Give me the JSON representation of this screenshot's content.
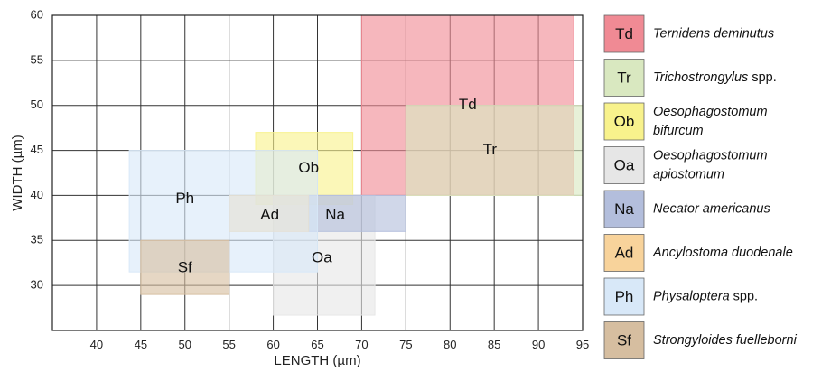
{
  "chart_data": {
    "type": "range-box",
    "xlabel": "LENGTH (µm)",
    "ylabel": "WIDTH (µm)",
    "xlim": [
      35,
      95
    ],
    "ylim": [
      25,
      60
    ],
    "xticks": [
      40,
      45,
      50,
      55,
      60,
      65,
      70,
      75,
      80,
      85,
      90,
      95
    ],
    "yticks": [
      30,
      35,
      40,
      45,
      50,
      55,
      60
    ],
    "grid": true,
    "legend_position": "right",
    "series": [
      {
        "code": "Td",
        "legend_lines": [
          [
            "Ternidens deminutus"
          ]
        ],
        "color": "#f08a94",
        "length": [
          70,
          94
        ],
        "width": [
          40,
          60
        ]
      },
      {
        "code": "Tr",
        "legend_lines": [
          [
            "Trichostrongylus",
            " spp."
          ]
        ],
        "color": "#d9e8c0",
        "length": [
          75,
          95
        ],
        "width": [
          40,
          50
        ]
      },
      {
        "code": "Ob",
        "legend_lines": [
          [
            "Oesophagostomum"
          ],
          [
            "bifurcum"
          ]
        ],
        "color": "#f8f28c",
        "length": [
          58,
          69
        ],
        "width": [
          39,
          47
        ]
      },
      {
        "code": "Oa",
        "legend_lines": [
          [
            "Oesophagostomum"
          ],
          [
            "apiostomum"
          ]
        ],
        "color": "#e6e6e6",
        "length": [
          60,
          71.5
        ],
        "width": [
          26.7,
          40
        ]
      },
      {
        "code": "Na",
        "legend_lines": [
          [
            "Necator americanus"
          ]
        ],
        "color": "#b3bedc",
        "length": [
          64,
          75
        ],
        "width": [
          36,
          40
        ]
      },
      {
        "code": "Ad",
        "legend_lines": [
          [
            "Ancylostoma duodenale"
          ]
        ],
        "color": "#f8d39b",
        "length": [
          55,
          64
        ],
        "width": [
          36,
          40
        ]
      },
      {
        "code": "Ph",
        "legend_lines": [
          [
            "Physaloptera",
            " spp."
          ]
        ],
        "color": "#d8e8f8",
        "length": [
          43.7,
          65
        ],
        "width": [
          31.5,
          45
        ]
      },
      {
        "code": "Sf",
        "legend_lines": [
          [
            "Strongyloides fuelleborni"
          ]
        ],
        "color": "#d6bea0",
        "length": [
          45,
          55
        ],
        "width": [
          29,
          35
        ]
      }
    ],
    "box_labels": [
      {
        "code": "Td",
        "x": 82,
        "y": 50
      },
      {
        "code": "Tr",
        "x": 84.5,
        "y": 45
      },
      {
        "code": "Ob",
        "x": 64,
        "y": 43
      },
      {
        "code": "Ph",
        "x": 50,
        "y": 39.6
      },
      {
        "code": "Ad",
        "x": 59.6,
        "y": 37.8
      },
      {
        "code": "Na",
        "x": 67,
        "y": 37.8
      },
      {
        "code": "Oa",
        "x": 65.5,
        "y": 33
      },
      {
        "code": "Sf",
        "x": 50,
        "y": 31.9
      }
    ]
  }
}
